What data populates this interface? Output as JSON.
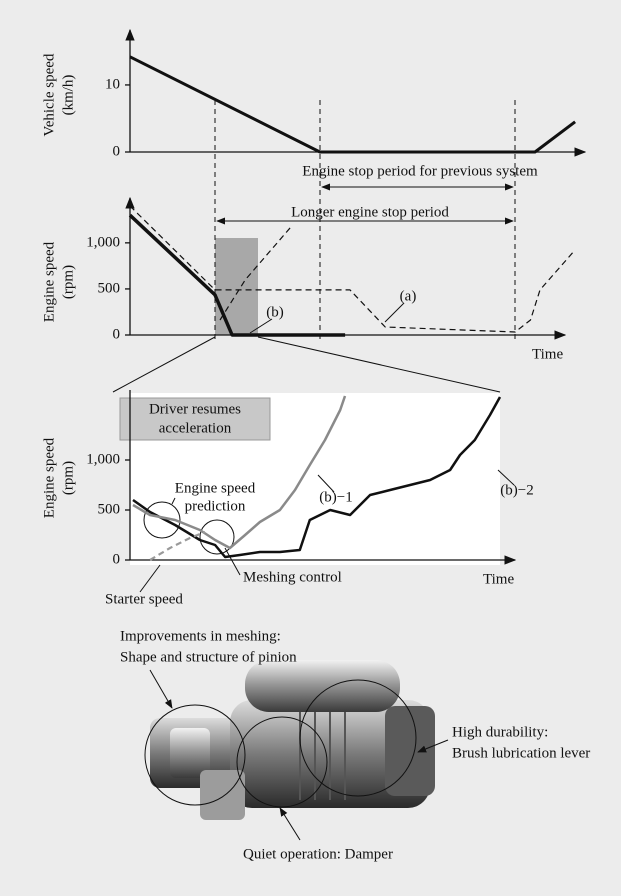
{
  "chart_data": [
    {
      "type": "line",
      "y_label": [
        "Vehicle speed",
        "(km/h)"
      ],
      "series": [
        {
          "color": "#111111",
          "x": [
            0,
            42.2,
            90,
            98.9
          ],
          "values": [
            14.2,
            0,
            0,
            4.5
          ]
        }
      ],
      "xlim": [
        0,
        100
      ],
      "ylim": [
        0,
        17
      ],
      "yticks": [
        0,
        10
      ],
      "annotations": [
        "Engine stop period for previous system",
        "Longer engine stop period"
      ]
    },
    {
      "type": "line",
      "y_label": [
        "Engine speed",
        "(rpm)"
      ],
      "x_label": "Time",
      "series": [
        {
          "name": "(b)",
          "color": "#111111",
          "x": [
            0,
            18.9,
            22.7,
            47.8
          ],
          "values": [
            1300,
            435,
            0,
            0
          ]
        },
        {
          "name": "(a)",
          "color": "#111111",
          "dashed": true,
          "x": [
            0,
            18.9,
            48.9,
            56.7,
            85.6,
            89,
            91.1,
            98.9
          ],
          "values": [
            1400,
            489,
            489,
            87,
            33,
            163,
            489,
            924
          ]
        },
        {
          "color": "#111111",
          "dashed": true,
          "x": [
            20,
            25.6,
            35.6
          ],
          "values": [
            163,
            598,
            1163
          ]
        }
      ],
      "xlim": [
        0,
        100
      ],
      "ylim": [
        0,
        1400
      ],
      "yticks": [
        0,
        500,
        {
          "value": 1000,
          "label": "1,000"
        }
      ]
    },
    {
      "type": "line",
      "y_label": [
        "Engine speed",
        "(rpm)"
      ],
      "x_label": "Time",
      "series": [
        {
          "name": "(b)−2",
          "color": "#111111",
          "x": [
            0.8,
            5.4,
            12.2,
            18.9,
            23,
            25.7,
            29.7,
            35.1,
            40.5,
            45.9,
            48.6,
            54.1,
            59.5,
            64.9,
            70.3,
            75.7,
            81.1,
            86.5,
            89.2,
            93.2,
            97.3,
            100
          ],
          "values": [
            600,
            480,
            350,
            200,
            150,
            30,
            50,
            80,
            80,
            100,
            400,
            500,
            450,
            650,
            700,
            750,
            800,
            900,
            1050,
            1200,
            1450,
            1630
          ]
        },
        {
          "name": "(b)−1",
          "color": "#8a8a8a",
          "x": [
            0.8,
            5.4,
            12.2,
            18.9,
            23,
            27,
            31.1,
            35.1,
            40.5,
            44.6,
            48.6,
            52.7,
            56.8,
            58.1
          ],
          "values": [
            550,
            450,
            400,
            300,
            200,
            120,
            250,
            380,
            500,
            700,
            950,
            1200,
            1500,
            1640
          ]
        },
        {
          "name": "Starter speed",
          "color": "#9a9a9a",
          "dashed": true,
          "x": [
            5.4,
            10.8,
            16.2,
            20.3
          ],
          "values": [
            0,
            120,
            220,
            280
          ]
        }
      ],
      "xlim": [
        0,
        100
      ],
      "ylim": [
        0,
        1700
      ],
      "yticks": [
        0,
        500,
        {
          "value": 1000,
          "label": "1,000"
        }
      ],
      "annotations": [
        [
          "Driver resumes",
          "acceleration"
        ],
        [
          "Engine speed",
          "prediction"
        ],
        "Meshing control"
      ]
    }
  ],
  "illustration": {
    "callouts": [
      [
        "Improvements in meshing:",
        "Shape and structure of pinion"
      ],
      [
        "High durability:",
        "Brush lubrication lever"
      ],
      [
        "Quiet operation: Damper"
      ]
    ]
  }
}
